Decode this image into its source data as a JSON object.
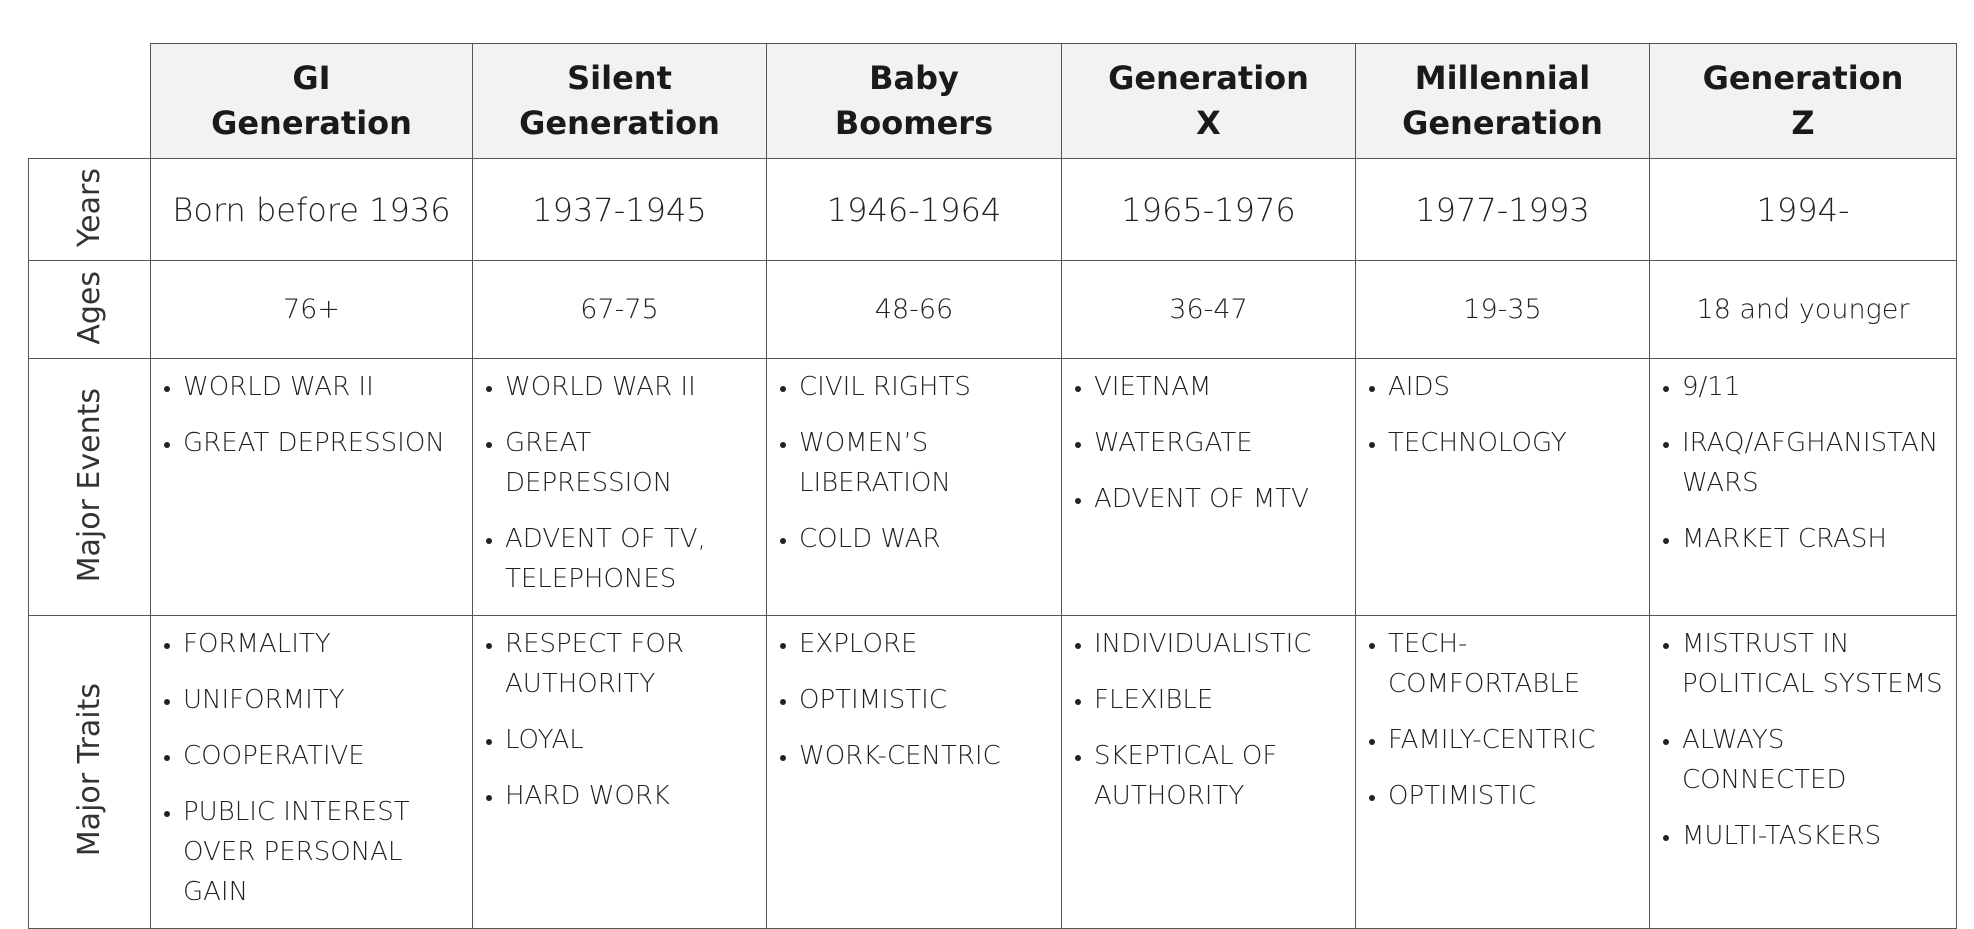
{
  "generations": [
    {
      "name_lines": [
        "GI",
        "Generation"
      ],
      "years": "Born before 1936",
      "ages": "76+",
      "events": [
        "WORLD WAR II",
        "GREAT DEPRESSION"
      ],
      "traits": [
        "FORMALITY",
        "UNIFORMITY",
        "COOPERATIVE",
        "PUBLIC INTEREST OVER PERSONAL GAIN"
      ]
    },
    {
      "name_lines": [
        "Silent",
        "Generation"
      ],
      "years": "1937-1945",
      "ages": "67-75",
      "events": [
        "WORLD WAR II",
        "GREAT DEPRESSION",
        "ADVENT OF TV, TELEPHONES"
      ],
      "traits": [
        "RESPECT FOR AUTHORITY",
        "LOYAL",
        "HARD WORK"
      ]
    },
    {
      "name_lines": [
        "Baby",
        "Boomers"
      ],
      "years": "1946-1964",
      "ages": "48-66",
      "events": [
        "CIVIL RIGHTS",
        "WOMEN’S LIBERATION",
        "COLD WAR"
      ],
      "traits": [
        "EXPLORE",
        "OPTIMISTIC",
        "WORK-CENTRIC"
      ]
    },
    {
      "name_lines": [
        "Generation",
        "X"
      ],
      "years": "1965-1976",
      "ages": "36-47",
      "events": [
        "VIETNAM",
        "WATERGATE",
        "ADVENT OF MTV"
      ],
      "traits": [
        "INDIVIDUALISTIC",
        "FLEXIBLE",
        "SKEPTICAL OF AUTHORITY"
      ]
    },
    {
      "name_lines": [
        "Millennial",
        "Generation"
      ],
      "years": "1977-1993",
      "ages": "19-35",
      "events": [
        "AIDS",
        "TECHNOLOGY"
      ],
      "traits": [
        "TECH-COMFORTABLE",
        "FAMILY-CENTRIC",
        "OPTIMISTIC"
      ]
    },
    {
      "name_lines": [
        "Generation",
        "Z"
      ],
      "years": "1994-",
      "ages": "18 and younger",
      "events": [
        "9/11",
        "IRAQ/AFGHANISTAN WARS",
        "MARKET CRASH"
      ],
      "traits": [
        "MISTRUST IN POLITICAL SYSTEMS",
        "ALWAYS CONNECTED",
        "MULTI-TASKERS"
      ]
    }
  ],
  "row_labels": {
    "years": "Years",
    "ages": "Ages",
    "events": "Major Events",
    "traits": "Major Traits"
  }
}
